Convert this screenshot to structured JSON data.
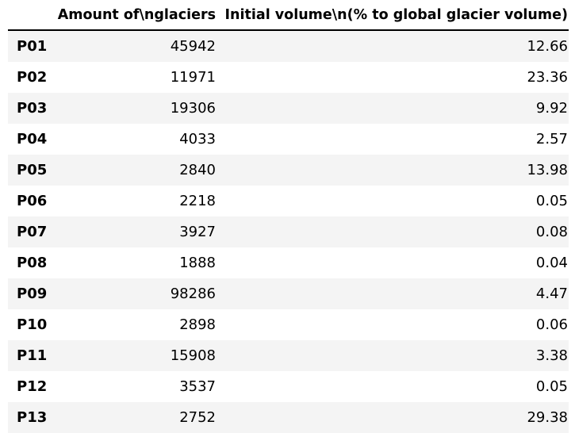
{
  "chart_data": {
    "type": "table",
    "columns": [
      "",
      "Amount of\\nglaciers",
      "Initial volume\\n(% to global glacier volume)"
    ],
    "rows": [
      {
        "id": "P01",
        "amount": "45942",
        "volume": "12.66"
      },
      {
        "id": "P02",
        "amount": "11971",
        "volume": "23.36"
      },
      {
        "id": "P03",
        "amount": "19306",
        "volume": "9.92"
      },
      {
        "id": "P04",
        "amount": "4033",
        "volume": "2.57"
      },
      {
        "id": "P05",
        "amount": "2840",
        "volume": "13.98"
      },
      {
        "id": "P06",
        "amount": "2218",
        "volume": "0.05"
      },
      {
        "id": "P07",
        "amount": "3927",
        "volume": "0.08"
      },
      {
        "id": "P08",
        "amount": "1888",
        "volume": "0.04"
      },
      {
        "id": "P09",
        "amount": "98286",
        "volume": "4.47"
      },
      {
        "id": "P10",
        "amount": "2898",
        "volume": "0.06"
      },
      {
        "id": "P11",
        "amount": "15908",
        "volume": "3.38"
      },
      {
        "id": "P12",
        "amount": "3537",
        "volume": "0.05"
      },
      {
        "id": "P13",
        "amount": "2752",
        "volume": "29.38"
      }
    ]
  },
  "colors": {
    "stripe": "#f4f4f4",
    "background": "#ffffff",
    "text": "#000000",
    "header_rule": "#000000"
  }
}
